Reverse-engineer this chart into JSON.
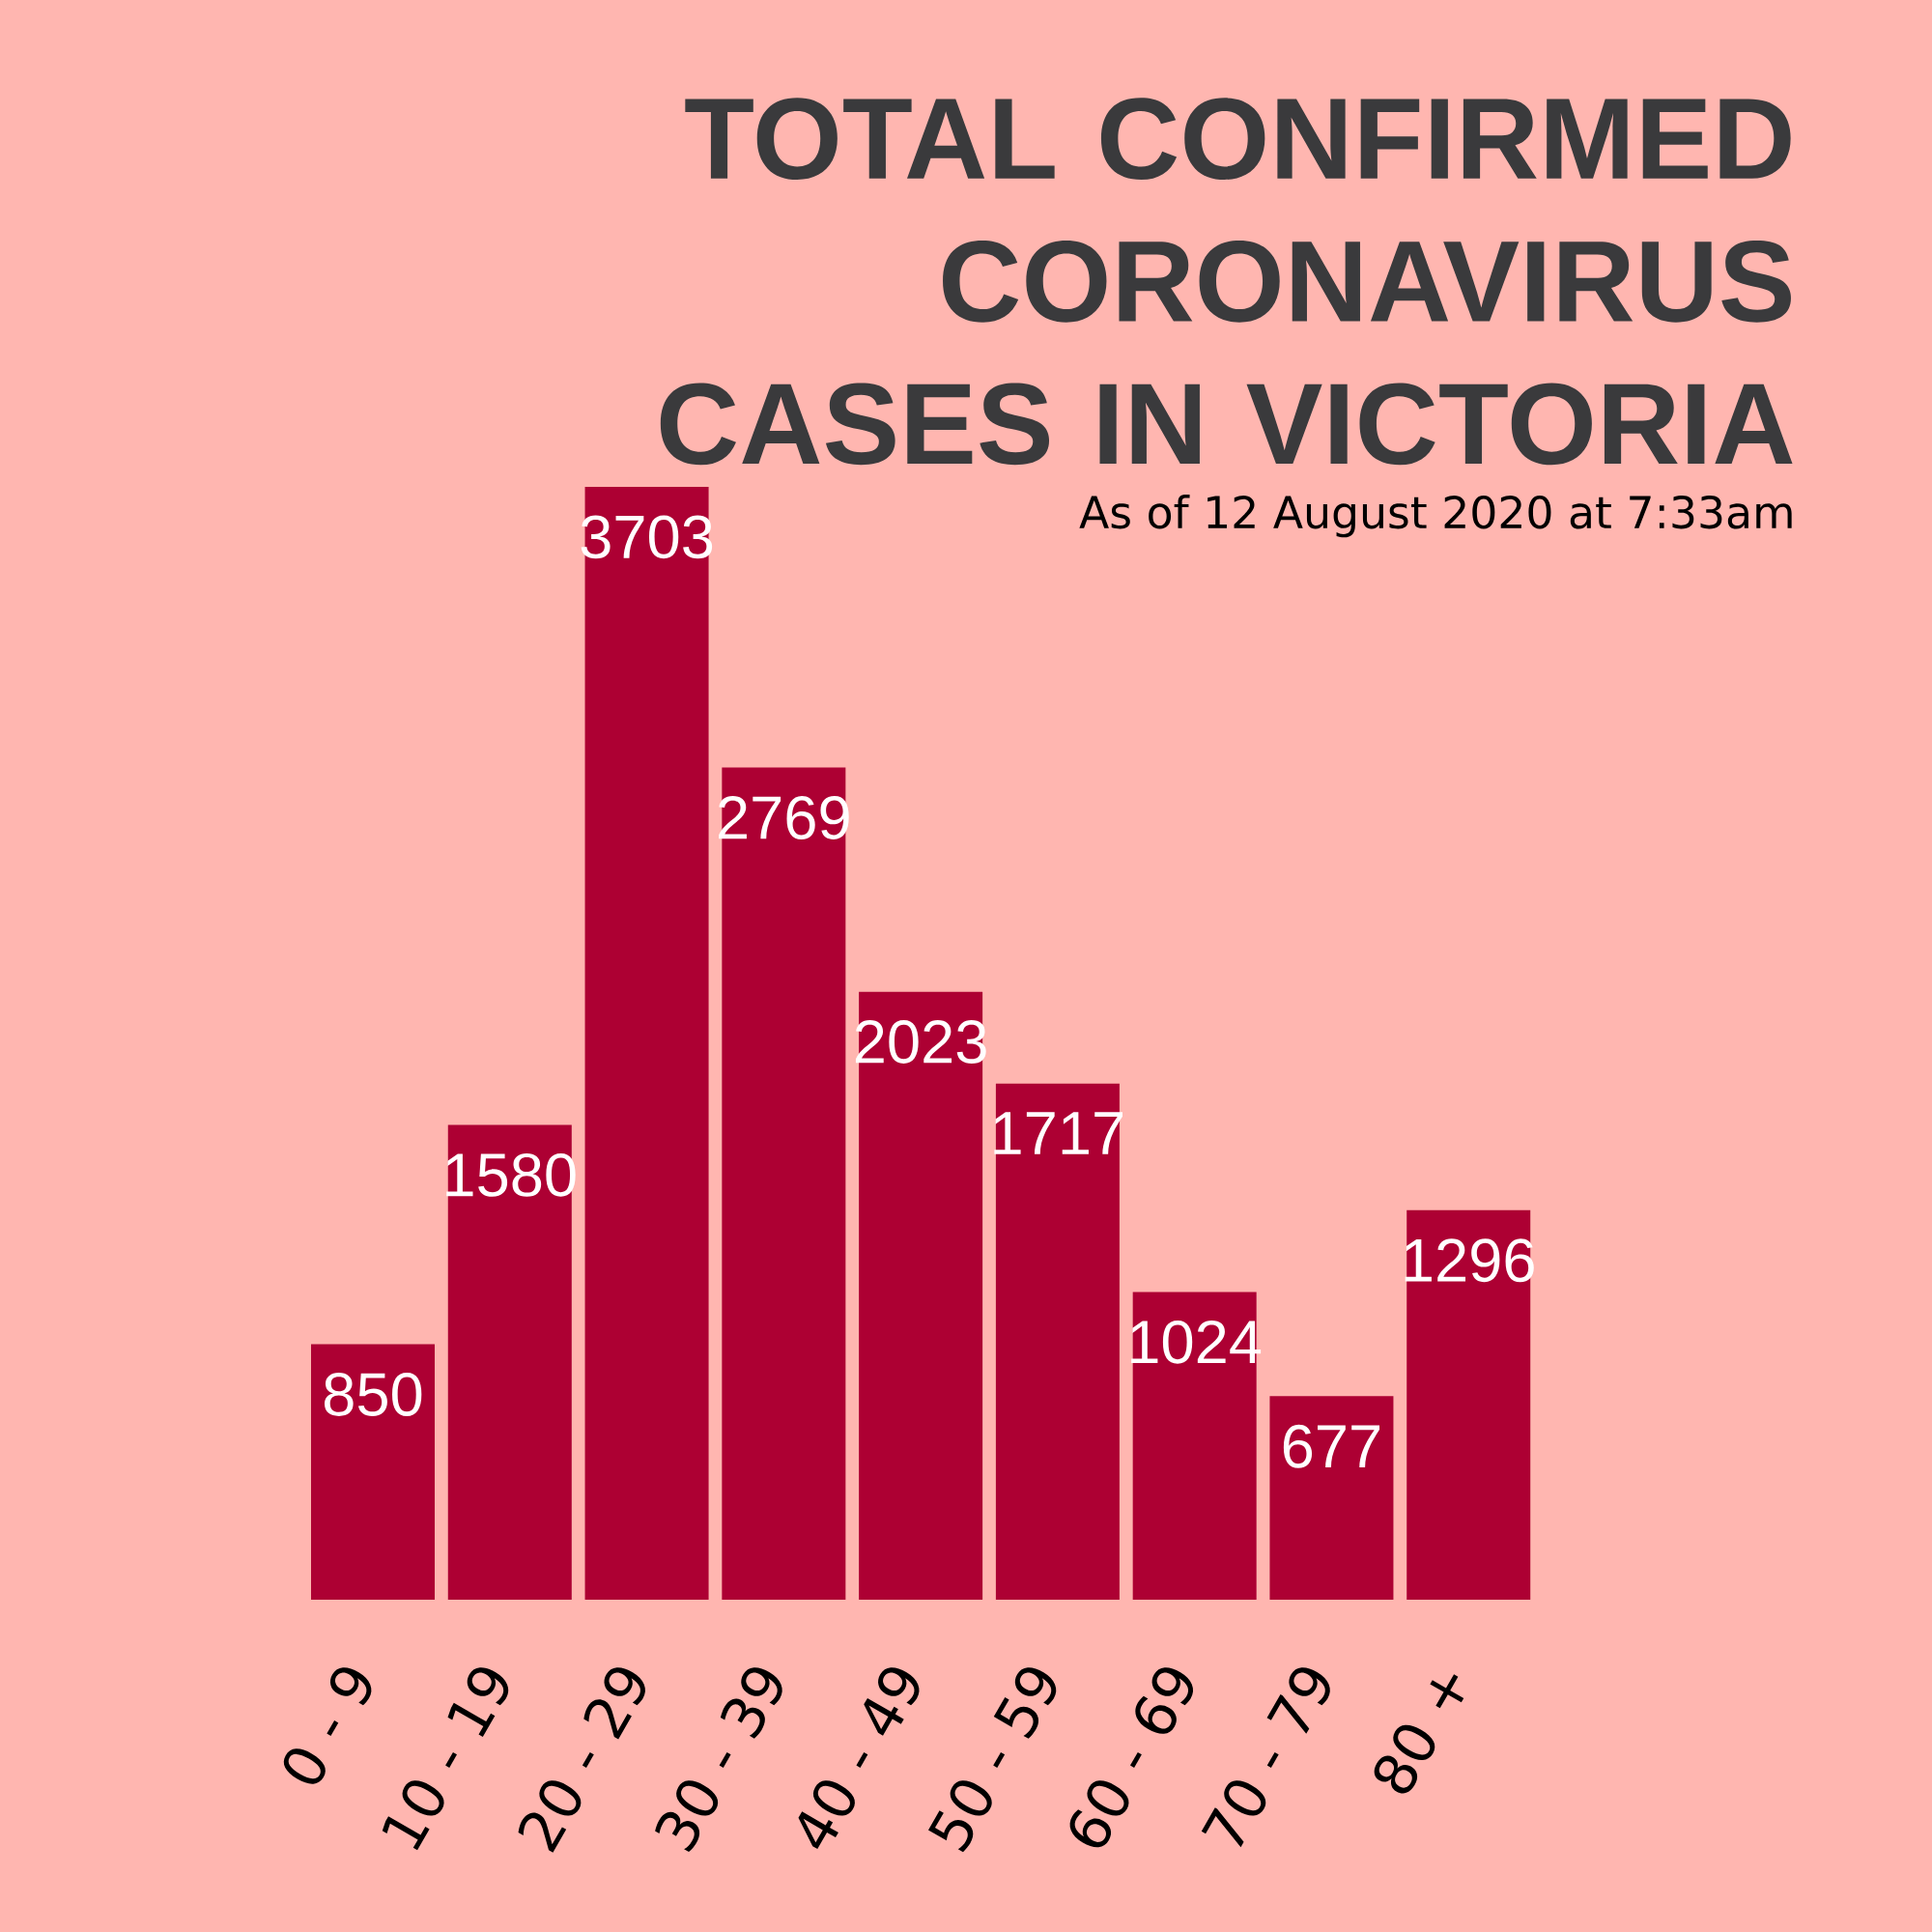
{
  "chart_data": {
    "type": "bar",
    "title": "TOTAL CONFIRMED CORONAVIRUS CASES IN VICTORIA",
    "subtitle": "As of 12 August 2020 at 7:33am",
    "categories": [
      "0 - 9",
      "10 - 19",
      "20 - 29",
      "30 - 39",
      "40 - 49",
      "50 - 59",
      "60 - 69",
      "70 - 79",
      "80 +"
    ],
    "values": [
      850,
      1580,
      3703,
      2769,
      2023,
      1717,
      1024,
      677,
      1296
    ],
    "color": "#ad0033",
    "data_labels": true
  }
}
